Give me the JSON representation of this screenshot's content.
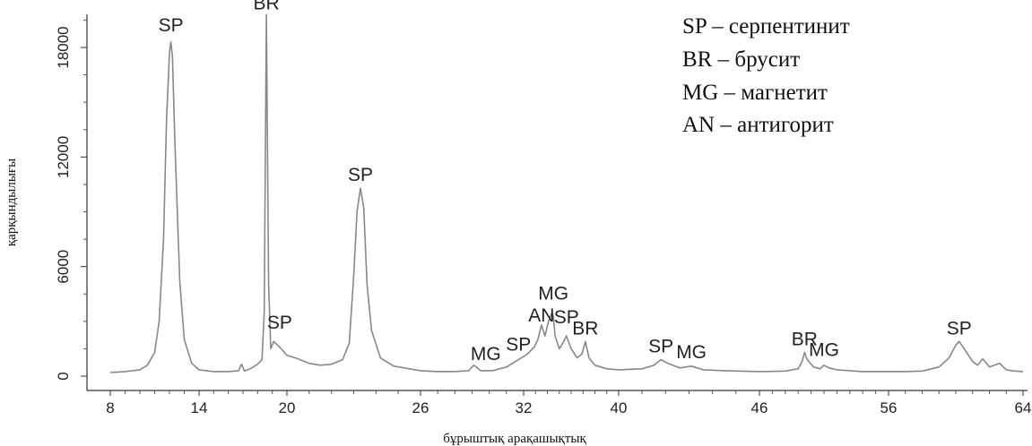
{
  "chart_data": {
    "type": "line",
    "title": "",
    "xlabel": "бұрыштық арақашықтық",
    "ylabel": "қарқындылығы",
    "xlim": [
      8,
      64
    ],
    "ylim": [
      0,
      20000
    ],
    "x_ticks": [
      "8",
      "14",
      "20",
      "26",
      "32",
      "40",
      "46",
      "56",
      "64"
    ],
    "y_ticks": [
      "0",
      "6000",
      "12000",
      "18000"
    ],
    "grid": false,
    "legend_position": "top-right",
    "legend": [
      "SP – серпентинит",
      "BR – брусит",
      "MG – магнетит",
      "AN – антигорит"
    ],
    "peak_labels": [
      {
        "text": "SP",
        "x": 12.1,
        "y": 18500
      },
      {
        "text": "BR",
        "x": 18.6,
        "y": 19700
      },
      {
        "text": "SP",
        "x": 19.5,
        "y": 2200
      },
      {
        "text": "SP",
        "x": 23.3,
        "y": 10300
      },
      {
        "text": "MG",
        "x": 29.8,
        "y": 500
      },
      {
        "text": "SP",
        "x": 31.7,
        "y": 1000
      },
      {
        "text": "AN",
        "x": 33.5,
        "y": 2600
      },
      {
        "text": "MG",
        "x": 34.5,
        "y": 3800
      },
      {
        "text": "SP",
        "x": 35.6,
        "y": 2500
      },
      {
        "text": "BR",
        "x": 37.2,
        "y": 1900
      },
      {
        "text": "SP",
        "x": 41.8,
        "y": 900
      },
      {
        "text": "MG",
        "x": 43.1,
        "y": 600
      },
      {
        "text": "BR",
        "x": 49.5,
        "y": 1300
      },
      {
        "text": "MG",
        "x": 51.0,
        "y": 700
      },
      {
        "text": "SP",
        "x": 60.2,
        "y": 1900
      }
    ],
    "series": [
      {
        "x": [
          8,
          9,
          10,
          10.5,
          11,
          11.3,
          11.6,
          11.8,
          12.0,
          12.1,
          12.2,
          12.4,
          12.7,
          13.0,
          13.5,
          14,
          15,
          16,
          16.7,
          16.9,
          17.1,
          17.5,
          18.0,
          18.3,
          18.45,
          18.6,
          18.75,
          18.9,
          19.1,
          19.5,
          20,
          20.5,
          21,
          21.5,
          22,
          22.5,
          22.8,
          23.0,
          23.15,
          23.3,
          23.45,
          23.6,
          23.8,
          24.2,
          24.8,
          25.5,
          26,
          27,
          28,
          28.8,
          29.1,
          29.5,
          30.2,
          31,
          31.7,
          32.3,
          32.9,
          33.2,
          33.5,
          33.8,
          34.1,
          34.4,
          34.5,
          34.65,
          35,
          35.3,
          35.6,
          36,
          36.5,
          36.9,
          37.2,
          37.5,
          38,
          39,
          40,
          41,
          41.5,
          41.8,
          42.1,
          42.6,
          43.1,
          43.6,
          44.5,
          46,
          47,
          48,
          49,
          49.3,
          49.5,
          49.7,
          50.2,
          50.7,
          51,
          51.4,
          52,
          54,
          55,
          56,
          57,
          58,
          59,
          59.6,
          60.0,
          60.2,
          60.5,
          61,
          61.3,
          61.6,
          62,
          62.3,
          62.6,
          63,
          63.5,
          64
        ],
        "y": [
          200,
          250,
          350,
          600,
          1300,
          3000,
          7500,
          14000,
          17700,
          18300,
          17500,
          12000,
          5200,
          2000,
          700,
          350,
          250,
          250,
          300,
          650,
          280,
          400,
          650,
          900,
          3500,
          19800,
          5000,
          1500,
          1900,
          1600,
          1150,
          950,
          700,
          600,
          650,
          900,
          1800,
          5500,
          9000,
          10300,
          9200,
          5000,
          2500,
          1000,
          550,
          400,
          300,
          250,
          250,
          300,
          600,
          300,
          300,
          500,
          900,
          1200,
          1600,
          2000,
          2800,
          2200,
          3000,
          3500,
          3300,
          2200,
          1500,
          1800,
          2200,
          1500,
          1000,
          1200,
          1900,
          1000,
          600,
          400,
          350,
          400,
          600,
          900,
          700,
          450,
          550,
          350,
          300,
          250,
          260,
          280,
          400,
          800,
          1300,
          900,
          500,
          400,
          600,
          450,
          350,
          250,
          250,
          250,
          250,
          280,
          500,
          1000,
          1700,
          1900,
          1500,
          800,
          600,
          950,
          500,
          600,
          700,
          350,
          280,
          250
        ]
      }
    ]
  }
}
